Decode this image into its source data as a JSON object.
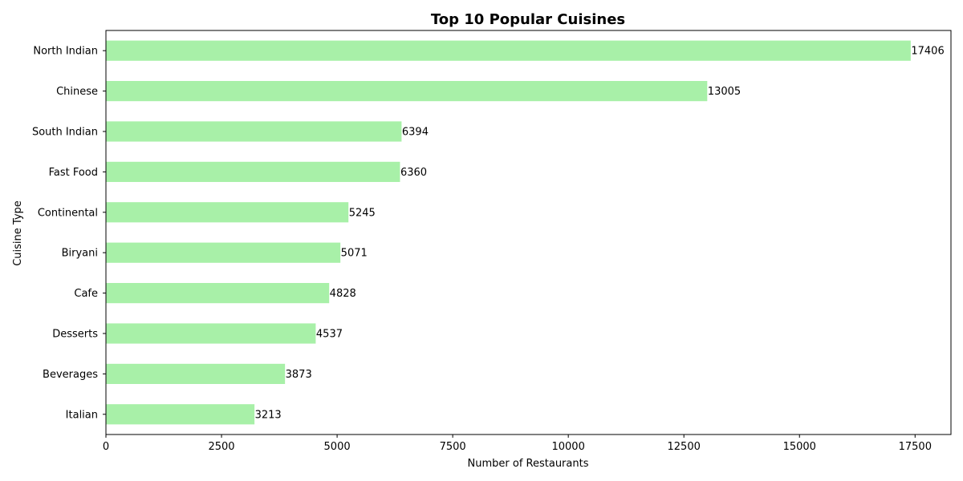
{
  "chart_data": {
    "type": "bar",
    "orientation": "horizontal",
    "title": "Top 10 Popular Cuisines",
    "xlabel": "Number of Restaurants",
    "ylabel": "Cuisine Type",
    "categories": [
      "North Indian",
      "Chinese",
      "South Indian",
      "Fast Food",
      "Continental",
      "Biryani",
      "Cafe",
      "Desserts",
      "Beverages",
      "Italian"
    ],
    "values": [
      17406,
      13005,
      6394,
      6360,
      5245,
      5071,
      4828,
      4537,
      3873,
      3213
    ],
    "xlim": [
      0,
      18276
    ],
    "xticks": [
      0,
      2500,
      5000,
      7500,
      10000,
      12500,
      15000,
      17500
    ],
    "xtick_labels": [
      "0",
      "2500",
      "5000",
      "7500",
      "10000",
      "12500",
      "15000",
      "17500"
    ],
    "bar_color": "#a8f0a8",
    "grid": false
  }
}
